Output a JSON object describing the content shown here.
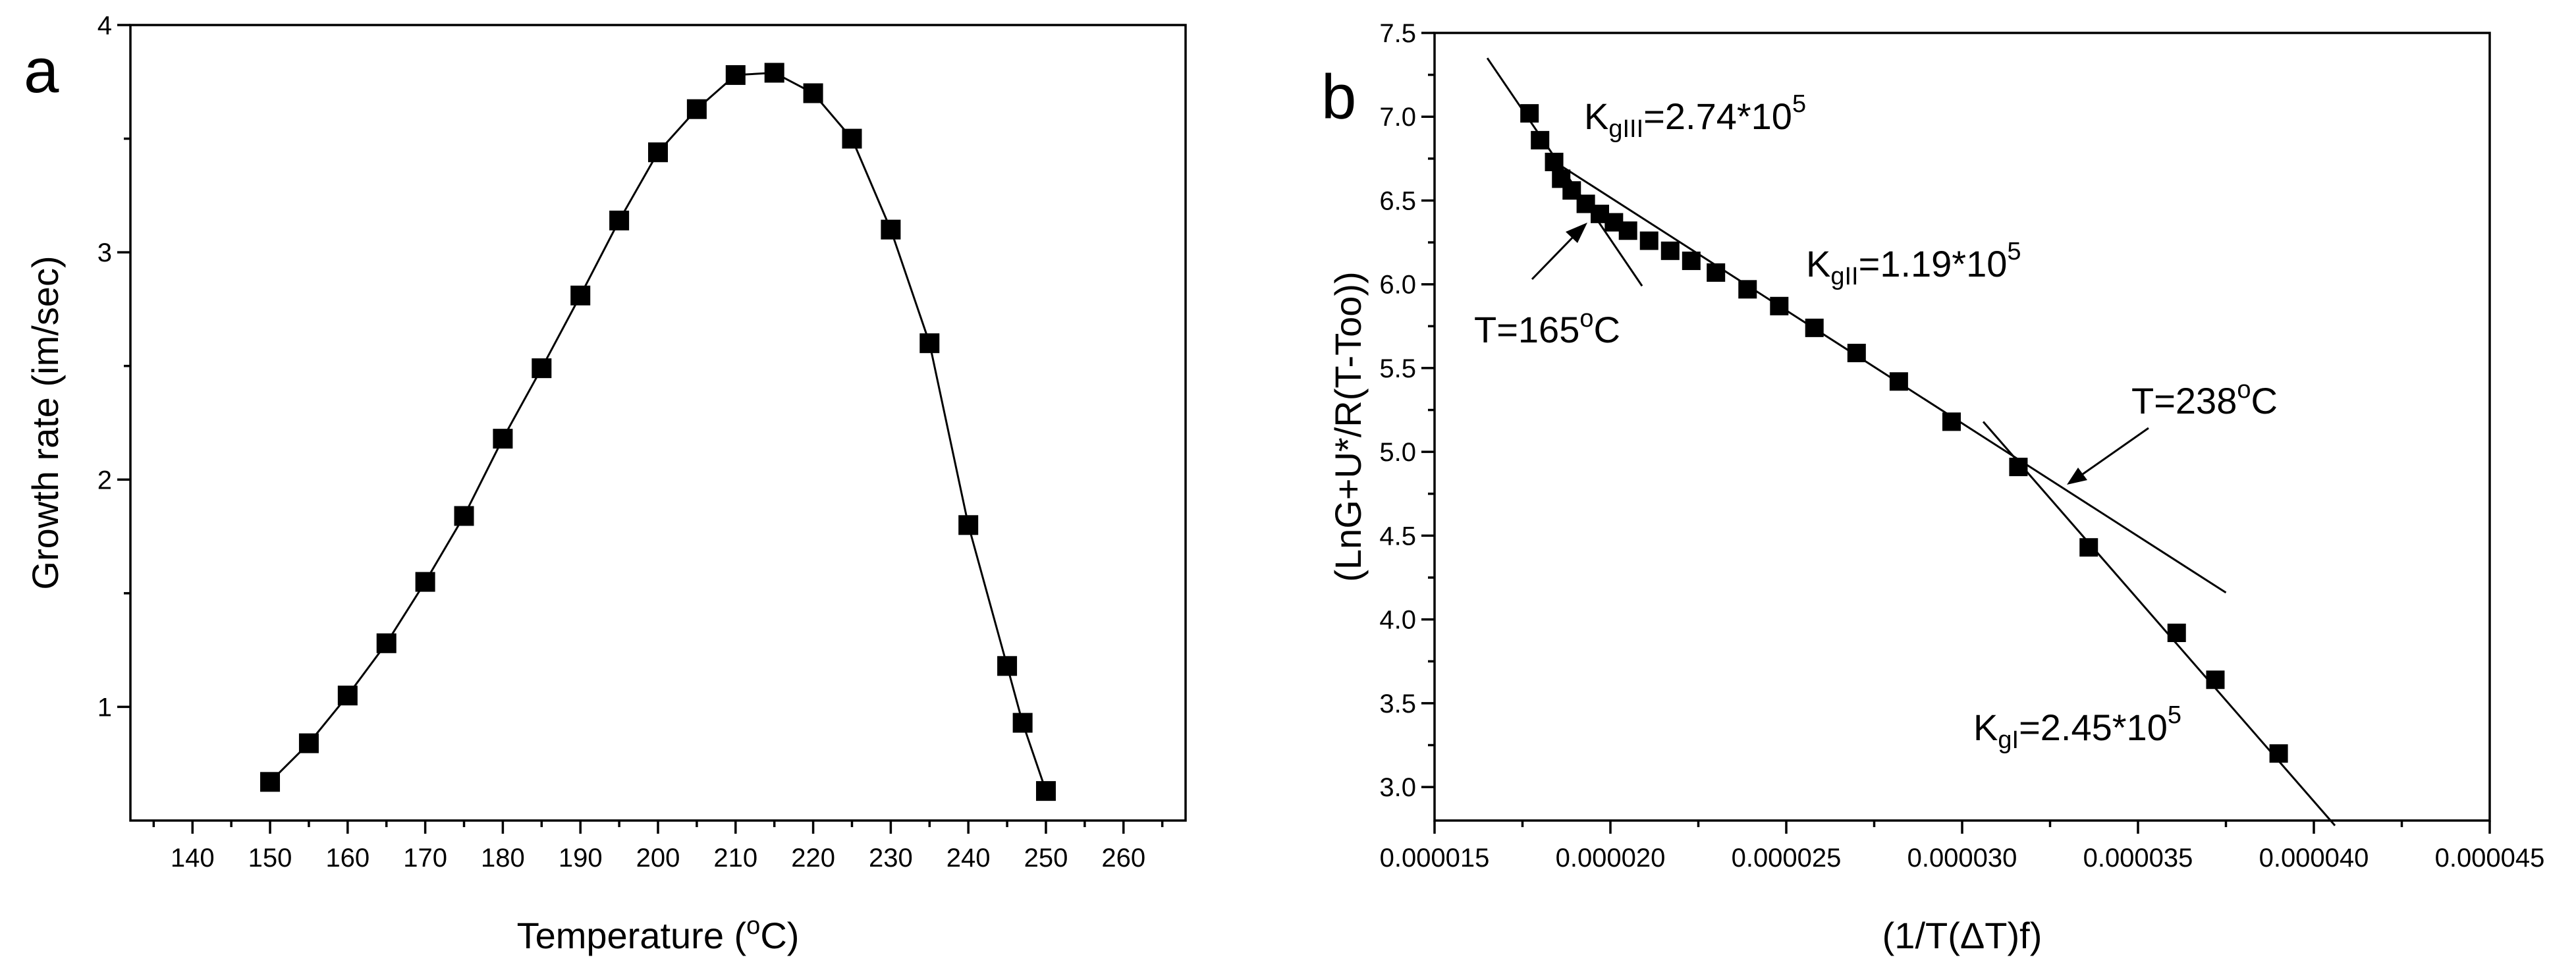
{
  "chart_data": [
    {
      "type": "line",
      "panel_label": "a",
      "title": "",
      "xlabel_prefix": "Temperature (",
      "xlabel_sup": "o",
      "xlabel_suffix": "C)",
      "ylabel": "Growth rate (im/sec)",
      "xlim": [
        132,
        268
      ],
      "ylim": [
        0.5,
        4
      ],
      "x_ticks": [
        140,
        150,
        160,
        170,
        180,
        190,
        200,
        210,
        220,
        230,
        240,
        250,
        260
      ],
      "y_ticks": [
        1,
        2,
        3,
        4
      ],
      "y_tick_labels": [
        "1",
        "2",
        "3",
        "4"
      ],
      "series": [
        {
          "name": "Growth rate",
          "marker": "square",
          "x": [
            150,
            155,
            160,
            165,
            170,
            175,
            180,
            185,
            190,
            195,
            200,
            205,
            210,
            215,
            220,
            225,
            230,
            235,
            240,
            245,
            247,
            250
          ],
          "y": [
            0.67,
            0.84,
            1.05,
            1.28,
            1.55,
            1.84,
            2.18,
            2.49,
            2.81,
            3.14,
            3.44,
            3.63,
            3.78,
            3.79,
            3.7,
            3.5,
            3.1,
            2.6,
            1.8,
            1.18,
            0.93,
            0.63
          ]
        }
      ]
    },
    {
      "type": "scatter",
      "panel_label": "b",
      "title": "",
      "xlabel_prefix": "(1/T(",
      "xlabel_delta": "Δ",
      "xlabel_suffix": "T)f)",
      "ylabel": "(LnG+U*/R(T-Too))",
      "xlim": [
        1.5e-05,
        4.5e-05
      ],
      "ylim": [
        2.8,
        7.5
      ],
      "x_ticks": [
        1.5e-05,
        2e-05,
        2.5e-05,
        3e-05,
        3.5e-05,
        4e-05,
        4.5e-05
      ],
      "x_tick_labels": [
        "0.000015",
        "0.000020",
        "0.000025",
        "0.000030",
        "0.000035",
        "0.000040",
        "0.000045"
      ],
      "y_ticks": [
        3.0,
        3.5,
        4.0,
        4.5,
        5.0,
        5.5,
        6.0,
        6.5,
        7.0,
        7.5
      ],
      "y_tick_labels": [
        "3.0",
        "3.5",
        "4.0",
        "4.5",
        "5.0",
        "5.5",
        "6.0",
        "6.5",
        "7.0",
        "7.5"
      ],
      "series": [
        {
          "name": "data",
          "marker": "square",
          "x": [
            1.77e-05,
            1.8e-05,
            1.84e-05,
            1.86e-05,
            1.89e-05,
            1.93e-05,
            1.97e-05,
            2.01e-05,
            2.05e-05,
            2.11e-05,
            2.17e-05,
            2.23e-05,
            2.3e-05,
            2.39e-05,
            2.48e-05,
            2.58e-05,
            2.7e-05,
            2.82e-05,
            2.97e-05,
            3.16e-05,
            3.36e-05,
            3.61e-05,
            3.72e-05,
            3.9e-05
          ],
          "y": [
            7.02,
            6.86,
            6.73,
            6.63,
            6.56,
            6.48,
            6.42,
            6.37,
            6.32,
            6.26,
            6.2,
            6.14,
            6.07,
            5.97,
            5.87,
            5.74,
            5.59,
            5.42,
            5.18,
            4.91,
            4.43,
            3.92,
            3.64,
            3.2
          ]
        }
      ],
      "fit_lines": [
        {
          "name": "KgIII fit",
          "x": [
            1.65e-05,
            2.09e-05
          ],
          "y": [
            7.35,
            5.99
          ]
        },
        {
          "name": "KgII fit",
          "x": [
            1.82e-05,
            3.75e-05
          ],
          "y": [
            6.76,
            4.16
          ]
        },
        {
          "name": "KgI fit",
          "x": [
            3.06e-05,
            4.06e-05
          ],
          "y": [
            5.18,
            2.77
          ]
        }
      ],
      "annotations": {
        "kgIII": {
          "base": "K",
          "sub": "gIII",
          "mid": "=2.74*10",
          "sup": "5"
        },
        "kgII": {
          "base": "K",
          "sub": "gII",
          "mid": "=1.19*10",
          "sup": "5"
        },
        "kgI": {
          "base": "K",
          "sub": "gI",
          "mid": "=2.45*10",
          "sup": "5"
        },
        "t165": {
          "prefix": "T=165",
          "sup": "o",
          "suffix": "C"
        },
        "t238": {
          "prefix": "T=238",
          "sup": "o",
          "suffix": "C"
        }
      }
    }
  ]
}
